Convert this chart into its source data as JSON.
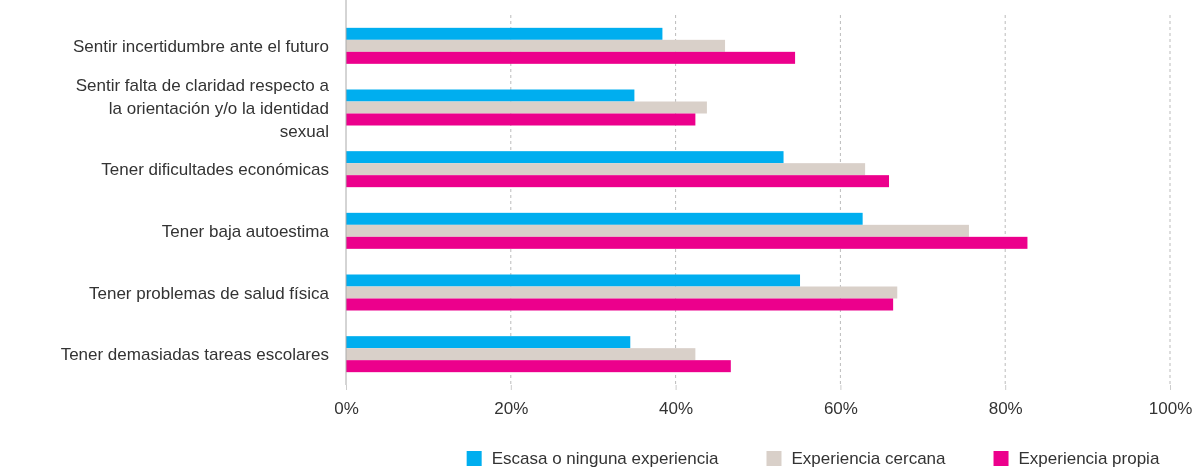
{
  "chart_data": {
    "type": "bar",
    "orientation": "horizontal",
    "categories": [
      "Sentir incertidumbre ante el futuro",
      "Sentir falta de claridad respecto a la orientación y/o la identidad sexual",
      "Tener dificultades económicas",
      "Tener baja autoestima",
      "Tener problemas de salud física",
      "Tener demasiadas tareas escolares"
    ],
    "series": [
      {
        "name": "Escasa o ninguna experiencia",
        "color": "#00aeef",
        "values": [
          38.4,
          35.0,
          53.1,
          62.7,
          55.1,
          34.5
        ]
      },
      {
        "name": "Experiencia cercana",
        "color": "#d9d0c9",
        "values": [
          46.0,
          43.8,
          63.0,
          75.6,
          66.9,
          42.4
        ]
      },
      {
        "name": "Experiencia propia",
        "color": "#ec008c",
        "values": [
          54.5,
          42.4,
          65.9,
          82.7,
          66.4,
          46.7
        ]
      }
    ],
    "xlim": [
      0,
      100
    ],
    "xticks": [
      {
        "value": 0,
        "label": "0%"
      },
      {
        "value": 20,
        "label": "20%"
      },
      {
        "value": 40,
        "label": "40%"
      },
      {
        "value": 60,
        "label": "60%"
      },
      {
        "value": 80,
        "label": "80%"
      },
      {
        "value": 100,
        "label": "100%"
      }
    ],
    "grid": "x",
    "legend": "bottom"
  }
}
